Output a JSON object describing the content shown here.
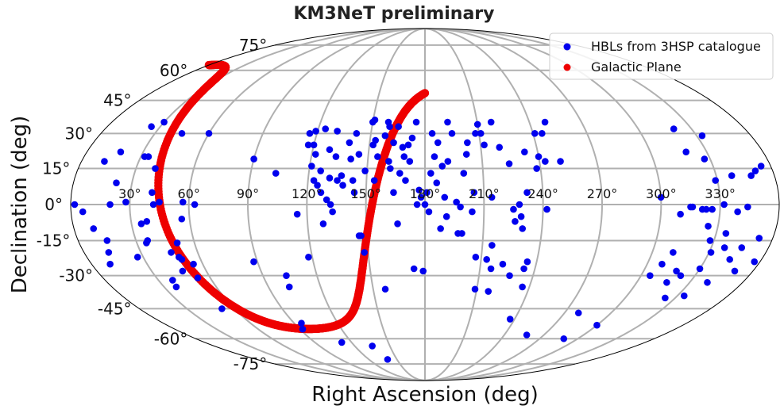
{
  "chart_data": {
    "type": "scatter",
    "projection": "mollweide",
    "title": "KM3NeT preliminary",
    "xlabel": "Right Ascension (deg)",
    "ylabel": "Declination (deg)",
    "x_tick_labels": [
      "30°",
      "60°",
      "90°",
      "120°",
      "150°",
      "180°",
      "210°",
      "240°",
      "270°",
      "300°",
      "330°"
    ],
    "y_tick_labels": [
      "75°",
      "60°",
      "45°",
      "30°",
      "15°",
      "0°",
      "-15°",
      "-30°",
      "-45°",
      "-60°",
      "-75°"
    ],
    "legend": {
      "position": "top-right",
      "entries": [
        "HBLs from 3HSP catalogue",
        "Galactic Plane"
      ]
    },
    "colors": {
      "hbl": "#0000ee",
      "galactic": "#ee0000",
      "grid": "#b0b0b0"
    },
    "series": [
      {
        "name": "HBLs from 3HSP catalogue",
        "points": [
          [
            2,
            0
          ],
          [
            6,
            -3
          ],
          [
            10,
            -10
          ],
          [
            12,
            18
          ],
          [
            15,
            -15
          ],
          [
            10,
            -25
          ],
          [
            13,
            -20
          ],
          [
            18,
            22
          ],
          [
            20,
            0
          ],
          [
            22,
            9
          ],
          [
            25,
            33
          ],
          [
            27,
            -22
          ],
          [
            28,
            1
          ],
          [
            30,
            35
          ],
          [
            32,
            20
          ],
          [
            34,
            20
          ],
          [
            35,
            -16
          ],
          [
            35,
            -8
          ],
          [
            36,
            -15
          ],
          [
            37,
            -35
          ],
          [
            38,
            -32
          ],
          [
            38,
            -7
          ],
          [
            40,
            15
          ],
          [
            41,
            5
          ],
          [
            42,
            0
          ],
          [
            45,
            30
          ],
          [
            45,
            1
          ],
          [
            46,
            -20
          ],
          [
            47,
            -28
          ],
          [
            49,
            -22
          ],
          [
            50,
            -23
          ],
          [
            51,
            -16
          ],
          [
            52,
            -45
          ],
          [
            53,
            -31
          ],
          [
            55,
            -25
          ],
          [
            56,
            -6
          ],
          [
            57,
            1
          ],
          [
            60,
            30
          ],
          [
            63,
            0
          ],
          [
            88,
            -24
          ],
          [
            90,
            19
          ],
          [
            92,
            -55
          ],
          [
            95,
            -52
          ],
          [
            102,
            -35
          ],
          [
            103,
            -30
          ],
          [
            103,
            13
          ],
          [
            112,
            -62
          ],
          [
            115,
            -4
          ],
          [
            116,
            30
          ],
          [
            117,
            25
          ],
          [
            118,
            -22
          ],
          [
            119,
            31
          ],
          [
            120,
            25
          ],
          [
            121,
            16
          ],
          [
            122,
            21
          ],
          [
            123,
            10
          ],
          [
            124,
            32
          ],
          [
            125,
            8
          ],
          [
            126,
            14
          ],
          [
            127,
            5
          ],
          [
            128,
            -8
          ],
          [
            129,
            23
          ],
          [
            130,
            2
          ],
          [
            131,
            31
          ],
          [
            131,
            11
          ],
          [
            132,
            0
          ],
          [
            133,
            20
          ],
          [
            133,
            -3
          ],
          [
            135,
            -64
          ],
          [
            135,
            10
          ],
          [
            137,
            12
          ],
          [
            138,
            8
          ],
          [
            139,
            26
          ],
          [
            140,
            -72
          ],
          [
            141,
            19
          ],
          [
            142,
            30
          ],
          [
            143,
            10
          ],
          [
            144,
            5
          ],
          [
            145,
            21
          ],
          [
            146,
            -13
          ],
          [
            147,
            -13
          ],
          [
            148,
            -20
          ],
          [
            149,
            14
          ],
          [
            150,
            35
          ],
          [
            151,
            36
          ],
          [
            152,
            25
          ],
          [
            153,
            27
          ],
          [
            154,
            10
          ],
          [
            155,
            20
          ],
          [
            157,
            -36
          ],
          [
            158,
            29
          ],
          [
            159,
            35
          ],
          [
            160,
            33
          ],
          [
            161,
            18
          ],
          [
            162,
            15
          ],
          [
            163,
            26
          ],
          [
            164,
            5
          ],
          [
            165,
            33
          ],
          [
            166,
            -8
          ],
          [
            167,
            13
          ],
          [
            168,
            24
          ],
          [
            169,
            20
          ],
          [
            170,
            10
          ],
          [
            171,
            25
          ],
          [
            172,
            18
          ],
          [
            173,
            28
          ],
          [
            174,
            -27
          ],
          [
            175,
            35
          ],
          [
            176,
            0
          ],
          [
            177,
            6
          ],
          [
            178,
            3
          ],
          [
            179,
            -28
          ],
          [
            180,
            0
          ],
          [
            181,
            5
          ],
          [
            182,
            -3
          ],
          [
            183,
            13
          ],
          [
            184,
            30
          ],
          [
            185,
            20
          ],
          [
            186,
            9
          ],
          [
            187,
            26
          ],
          [
            188,
            -10
          ],
          [
            189,
            16
          ],
          [
            190,
            3
          ],
          [
            191,
            -5
          ],
          [
            192,
            18
          ],
          [
            193,
            35
          ],
          [
            195,
            30
          ],
          [
            196,
            1
          ],
          [
            197,
            -12
          ],
          [
            198,
            -1
          ],
          [
            199,
            -12
          ],
          [
            200,
            13
          ],
          [
            202,
            21
          ],
          [
            203,
            26
          ],
          [
            204,
            -3
          ],
          [
            205,
            5
          ],
          [
            207,
            -22
          ],
          [
            208,
            30
          ],
          [
            209,
            -36
          ],
          [
            210,
            34
          ],
          [
            211,
            30
          ],
          [
            212,
            25
          ],
          [
            213,
            -23
          ],
          [
            214,
            3
          ],
          [
            215,
            -17
          ],
          [
            216,
            -27
          ],
          [
            217,
            -37
          ],
          [
            218,
            35
          ],
          [
            220,
            24
          ],
          [
            222,
            -25
          ],
          [
            224,
            17
          ],
          [
            225,
            -2
          ],
          [
            226,
            -7
          ],
          [
            227,
            -30
          ],
          [
            228,
            0
          ],
          [
            229,
            -5
          ],
          [
            230,
            -10
          ],
          [
            232,
            5
          ],
          [
            233,
            22
          ],
          [
            234,
            -27
          ],
          [
            235,
            -24
          ],
          [
            236,
            -35
          ],
          [
            237,
            -50
          ],
          [
            238,
            15
          ],
          [
            240,
            20
          ],
          [
            241,
            30
          ],
          [
            242,
            -2
          ],
          [
            243,
            18
          ],
          [
            245,
            30
          ],
          [
            249,
            35
          ],
          [
            251,
            18
          ],
          [
            257,
            -58
          ],
          [
            279,
            -47
          ],
          [
            289,
            -60
          ],
          [
            300,
            -53
          ],
          [
            300,
            3
          ],
          [
            305,
            -30
          ],
          [
            308,
            -25
          ],
          [
            310,
            -4
          ],
          [
            311,
            -20
          ],
          [
            315,
            -1
          ],
          [
            316,
            -1
          ],
          [
            317,
            -33
          ],
          [
            318,
            -28
          ],
          [
            319,
            22
          ],
          [
            320,
            32
          ],
          [
            321,
            -2
          ],
          [
            322,
            -30
          ],
          [
            323,
            -2
          ],
          [
            324,
            -40
          ],
          [
            325,
            -9
          ],
          [
            326,
            -2
          ],
          [
            327,
            19
          ],
          [
            328,
            -15
          ],
          [
            329,
            10
          ],
          [
            330,
            -27
          ],
          [
            331,
            -20
          ],
          [
            332,
            0
          ],
          [
            333,
            29
          ],
          [
            334,
            -39
          ],
          [
            335,
            -12
          ],
          [
            337,
            -18
          ],
          [
            338,
            12
          ],
          [
            339,
            -3
          ],
          [
            340,
            -33
          ],
          [
            343,
            -23
          ],
          [
            344,
            -1
          ],
          [
            346,
            -18
          ],
          [
            348,
            12
          ],
          [
            350,
            -28
          ],
          [
            351,
            14
          ],
          [
            353,
            -14
          ],
          [
            355,
            16
          ],
          [
            357,
            -24
          ]
        ]
      },
      {
        "name": "Galactic Plane",
        "points": [
          [
            0,
            62.87
          ],
          [
            2,
            62.92
          ],
          [
            4,
            62.97
          ],
          [
            6,
            63.0
          ],
          [
            8,
            62.99
          ],
          [
            10,
            62.92
          ],
          [
            12,
            62.78
          ],
          [
            14,
            62.55
          ],
          [
            16,
            62.21
          ],
          [
            18,
            61.72
          ],
          [
            20,
            61.05
          ],
          [
            22,
            60.16
          ],
          [
            24,
            58.99
          ],
          [
            26,
            57.46
          ],
          [
            28,
            55.48
          ],
          [
            30,
            52.91
          ],
          [
            32,
            49.58
          ],
          [
            34,
            45.31
          ],
          [
            36,
            39.9
          ],
          [
            38,
            33.22
          ],
          [
            40,
            25.25
          ],
          [
            42,
            16.22
          ],
          [
            44,
            6.56
          ],
          [
            46,
            -3.14
          ],
          [
            48,
            -12.21
          ],
          [
            50,
            -20.21
          ],
          [
            52,
            -26.96
          ],
          [
            54,
            -32.47
          ],
          [
            56,
            -36.89
          ],
          [
            58,
            -40.4
          ],
          [
            60,
            -43.2
          ],
          [
            62,
            -45.44
          ],
          [
            64,
            -47.23
          ],
          [
            66,
            -48.68
          ],
          [
            68,
            -49.86
          ],
          [
            70,
            -50.83
          ],
          [
            72,
            -51.63
          ],
          [
            74,
            -52.28
          ],
          [
            76,
            -52.83
          ],
          [
            78,
            -53.28
          ],
          [
            80,
            -53.65
          ],
          [
            82,
            -53.96
          ],
          [
            84,
            -54.21
          ],
          [
            86,
            -54.42
          ],
          [
            88,
            -54.58
          ],
          [
            90,
            -54.71
          ],
          [
            92,
            -54.8
          ],
          [
            94,
            -54.87
          ],
          [
            96,
            -54.9
          ],
          [
            98,
            -54.9
          ],
          [
            100,
            -54.87
          ],
          [
            102,
            -54.81
          ],
          [
            104,
            -54.72
          ],
          [
            106,
            -54.6
          ],
          [
            108,
            -54.45
          ],
          [
            110,
            -54.26
          ],
          [
            112,
            -54.04
          ],
          [
            114,
            -53.77
          ],
          [
            116,
            -53.45
          ],
          [
            118,
            -53.08
          ],
          [
            120,
            -52.64
          ],
          [
            122,
            -52.13
          ],
          [
            124,
            -51.52
          ],
          [
            126,
            -50.81
          ],
          [
            128,
            -49.96
          ],
          [
            130,
            -48.95
          ],
          [
            132,
            -47.74
          ],
          [
            134,
            -46.27
          ],
          [
            136,
            -44.48
          ],
          [
            138,
            -42.28
          ],
          [
            140,
            -39.55
          ],
          [
            142,
            -36.16
          ],
          [
            144,
            -31.94
          ],
          [
            146,
            -26.71
          ],
          [
            148,
            -20.37
          ],
          [
            150,
            -12.98
          ],
          [
            152,
            -4.84
          ],
          [
            154,
            3.55
          ],
          [
            156,
            11.56
          ],
          [
            158,
            18.73
          ],
          [
            160,
            24.84
          ],
          [
            162,
            29.88
          ],
          [
            164,
            33.96
          ],
          [
            166,
            37.25
          ],
          [
            168,
            39.92
          ],
          [
            170,
            42.09
          ],
          [
            172,
            43.86
          ],
          [
            174,
            45.33
          ],
          [
            176,
            46.56
          ],
          [
            178,
            47.59
          ],
          [
            180,
            48.46
          ]
        ]
      }
    ]
  }
}
